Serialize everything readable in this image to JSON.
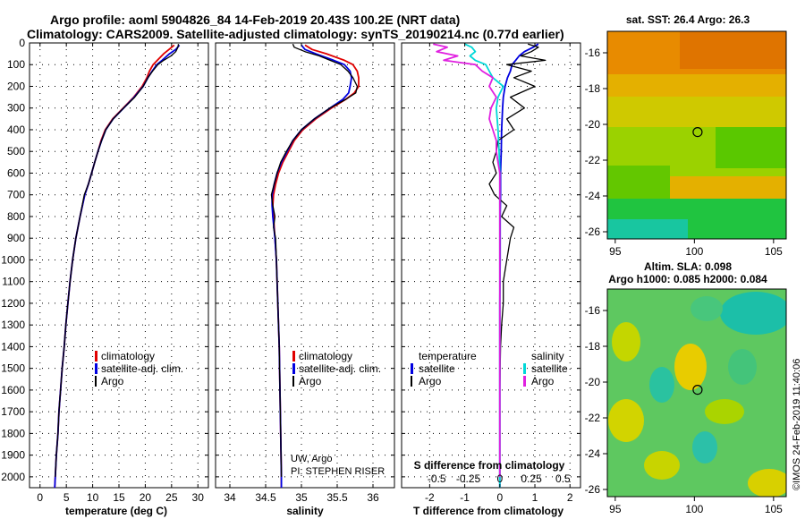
{
  "header": {
    "title_line1": "Argo profile: aoml 5904826_84 14-Feb-2019 20.43S 100.2E (NRT data)",
    "title_line2": "Climatology: CARS2009. Satellite-adjusted climatology: synTS_20190214.nc (0.77d earlier)"
  },
  "colors": {
    "climatology": "#e00000",
    "satellite": "#0000e0",
    "argo": "#000000",
    "argo_salinity_diff": "#e020e0",
    "satellite_salinity_diff": "#00d8d8"
  },
  "depth_ticks": [
    0,
    100,
    200,
    300,
    400,
    500,
    600,
    700,
    800,
    900,
    1000,
    1100,
    1200,
    1300,
    1400,
    1500,
    1600,
    1700,
    1800,
    1900,
    2000
  ],
  "chart_data": [
    {
      "type": "line",
      "id": "temperature",
      "xlabel": "temperature (deg C)",
      "xlim": [
        -2,
        32
      ],
      "ylim": [
        2050,
        0
      ],
      "xticks": [
        0,
        5,
        10,
        15,
        20,
        25,
        30
      ],
      "grid": true,
      "legend": {
        "placement": "lower-center",
        "entries": [
          "climatology",
          "satellite-adj. clim.",
          "Argo"
        ]
      },
      "series": [
        {
          "name": "climatology",
          "color": "#e00000",
          "y": [
            10,
            30,
            50,
            80,
            100,
            130,
            160,
            200,
            250,
            300,
            350,
            400,
            450,
            500,
            550,
            600,
            650,
            700,
            800,
            900,
            1000,
            1100,
            1200,
            1300,
            1400,
            1500,
            1600,
            1700,
            1800,
            1900,
            2000,
            2050
          ],
          "x": [
            25.5,
            24.5,
            23.5,
            22.3,
            21.5,
            20.8,
            20.3,
            19.4,
            17.8,
            15.8,
            13.8,
            12.4,
            11.6,
            11.0,
            10.4,
            9.8,
            9.2,
            8.5,
            7.6,
            6.8,
            6.2,
            5.7,
            5.3,
            4.9,
            4.6,
            4.2,
            3.9,
            3.6,
            3.4,
            3.1,
            2.9,
            2.8
          ]
        },
        {
          "name": "satellite-adj. clim.",
          "color": "#0000e0",
          "y": [
            10,
            30,
            50,
            80,
            100,
            130,
            160,
            200,
            250,
            300,
            350,
            400,
            450,
            500,
            550,
            600,
            650,
            700,
            800,
            900,
            1000,
            1100,
            1200,
            1300,
            1400,
            1500,
            1600,
            1700,
            1800,
            1900,
            2000,
            2050
          ],
          "x": [
            26.5,
            25.8,
            24.6,
            23.2,
            22.2,
            21.3,
            20.5,
            19.6,
            17.9,
            15.9,
            13.9,
            12.5,
            11.7,
            11.0,
            10.4,
            9.8,
            9.2,
            8.5,
            7.6,
            6.8,
            6.2,
            5.7,
            5.3,
            4.9,
            4.6,
            4.2,
            3.9,
            3.6,
            3.4,
            3.1,
            2.9,
            2.8
          ]
        },
        {
          "name": "Argo",
          "color": "#000000",
          "y": [
            5,
            20,
            40,
            60,
            80,
            100,
            130,
            160,
            200,
            250,
            300,
            350,
            400,
            450,
            500,
            550,
            600,
            650,
            700,
            800,
            900,
            1000,
            1100,
            1200,
            1300,
            1400,
            1500,
            1600,
            1700,
            1800,
            1900,
            2000
          ],
          "x": [
            26.3,
            26.2,
            25.8,
            24.9,
            23.5,
            22.4,
            21.4,
            20.5,
            19.6,
            18.0,
            15.9,
            13.9,
            12.5,
            11.7,
            11.0,
            10.4,
            9.8,
            9.2,
            8.4,
            7.6,
            6.8,
            6.2,
            5.7,
            5.3,
            4.9,
            4.6,
            4.2,
            3.9,
            3.6,
            3.4,
            3.1,
            2.9
          ]
        }
      ]
    },
    {
      "type": "line",
      "id": "salinity",
      "xlabel": "salinity",
      "xlim": [
        33.8,
        36.3
      ],
      "ylim": [
        2050,
        0
      ],
      "xticks": [
        34,
        34.5,
        35,
        35.5,
        36
      ],
      "grid": true,
      "legend": {
        "placement": "lower-center",
        "entries": [
          "climatology",
          "satellite-adj. clim.",
          "Argo"
        ]
      },
      "annotations": [
        "UW, Argo",
        "PI: STEPHEN RISER"
      ],
      "series": [
        {
          "name": "climatology",
          "color": "#e00000",
          "y": [
            10,
            30,
            50,
            80,
            100,
            130,
            160,
            200,
            230,
            260,
            300,
            350,
            400,
            450,
            500,
            550,
            600,
            650,
            700,
            750,
            800,
            900,
            1000,
            1200,
            1400,
            1600,
            1800,
            2000,
            2050
          ],
          "x": [
            35.05,
            35.15,
            35.35,
            35.6,
            35.72,
            35.78,
            35.8,
            35.8,
            35.74,
            35.62,
            35.42,
            35.2,
            35.02,
            34.9,
            34.82,
            34.74,
            34.68,
            34.64,
            34.61,
            34.6,
            34.61,
            34.63,
            34.65,
            34.67,
            34.69,
            34.7,
            34.71,
            34.72,
            34.72
          ]
        },
        {
          "name": "satellite-adj. clim.",
          "color": "#0000e0",
          "y": [
            10,
            30,
            50,
            80,
            100,
            130,
            160,
            200,
            230,
            260,
            300,
            350,
            400,
            450,
            500,
            550,
            600,
            650,
            700,
            750,
            800,
            900,
            1000,
            1200,
            1400,
            1600,
            1800,
            2000,
            2050
          ],
          "x": [
            35.0,
            35.05,
            35.2,
            35.45,
            35.6,
            35.68,
            35.7,
            35.68,
            35.66,
            35.58,
            35.4,
            35.18,
            35.0,
            34.88,
            34.8,
            34.72,
            34.66,
            34.62,
            34.59,
            34.59,
            34.6,
            34.63,
            34.65,
            34.67,
            34.69,
            34.7,
            34.71,
            34.72,
            34.72
          ]
        },
        {
          "name": "Argo",
          "color": "#000000",
          "y": [
            5,
            20,
            40,
            60,
            80,
            100,
            130,
            160,
            200,
            230,
            260,
            300,
            350,
            400,
            450,
            500,
            550,
            600,
            650,
            700,
            750,
            800,
            850,
            900,
            1000,
            1200,
            1400,
            1600,
            1800,
            2000
          ],
          "x": [
            34.88,
            34.9,
            35.05,
            35.25,
            35.4,
            35.55,
            35.65,
            35.72,
            35.78,
            35.76,
            35.62,
            35.4,
            35.18,
            35.0,
            34.88,
            34.79,
            34.71,
            34.66,
            34.62,
            34.58,
            34.6,
            34.63,
            34.61,
            34.64,
            34.65,
            34.67,
            34.69,
            34.7,
            34.71,
            34.72
          ]
        }
      ]
    },
    {
      "type": "line",
      "id": "differences",
      "xlabel": "T difference from climatology",
      "xlabel2": "S difference from climatology",
      "xlim": [
        -2.8,
        2.3
      ],
      "xticks": [
        -2,
        -1,
        0,
        1,
        2
      ],
      "xticks2_labels": [
        "-0.5",
        "-0.25",
        "0",
        "0.25",
        "0.5"
      ],
      "xticks2_values": [
        -1.8,
        -0.9,
        0,
        0.9,
        1.8
      ],
      "ylim": [
        2050,
        0
      ],
      "grid": true,
      "legend": {
        "placement": "lower",
        "temperature_heading": "temperature",
        "salinity_heading": "salinity",
        "entries": [
          "satellite",
          "Argo",
          "satellite",
          "Argo"
        ]
      },
      "series": [
        {
          "name": "temperature satellite",
          "color": "#0000e0",
          "y": [
            5,
            20,
            40,
            60,
            80,
            100,
            130,
            160,
            200,
            250,
            300,
            400,
            500,
            600,
            700,
            800,
            1000,
            1200,
            1500,
            1800,
            2050
          ],
          "x": [
            1.1,
            0.95,
            0.7,
            0.55,
            0.45,
            0.35,
            0.3,
            0.22,
            0.15,
            0.1,
            0.08,
            0.05,
            0.04,
            0.02,
            0.02,
            0.01,
            0.01,
            0.0,
            0.0,
            0.0,
            0.0
          ]
        },
        {
          "name": "temperature Argo",
          "color": "#000000",
          "y": [
            5,
            20,
            40,
            60,
            80,
            100,
            130,
            160,
            200,
            250,
            300,
            350,
            400,
            450,
            500,
            550,
            600,
            650,
            700,
            750,
            800,
            850,
            900,
            1000,
            1100,
            1200,
            1300,
            1400,
            1600,
            1800,
            2000
          ],
          "x": [
            0.8,
            1.1,
            0.9,
            0.6,
            1.3,
            0.2,
            0.9,
            0.4,
            1.0,
            0.3,
            0.7,
            0.2,
            0.4,
            -0.05,
            -0.1,
            -0.2,
            -0.1,
            -0.3,
            -0.15,
            0.2,
            0.05,
            0.4,
            0.3,
            0.2,
            0.1,
            0.1,
            0.05,
            0.02,
            0.0,
            0.0,
            0.0
          ]
        },
        {
          "name": "salinity satellite",
          "color": "#00d8d8",
          "y": [
            5,
            20,
            40,
            60,
            80,
            100,
            130,
            160,
            200,
            250,
            300,
            400,
            500,
            600,
            700,
            800,
            1000,
            1200,
            1500,
            1800,
            2050
          ],
          "x": [
            -1.0,
            -0.8,
            -0.7,
            -0.85,
            -0.7,
            -0.4,
            -0.3,
            -0.2,
            0.1,
            -0.05,
            -0.1,
            -0.05,
            -0.02,
            0.0,
            0.0,
            0.0,
            0.0,
            0.0,
            0.0,
            0.0,
            0.0
          ]
        },
        {
          "name": "salinity Argo",
          "color": "#e020e0",
          "y": [
            5,
            20,
            40,
            60,
            80,
            100,
            130,
            160,
            200,
            250,
            300,
            350,
            400,
            450,
            500,
            550,
            600,
            700,
            800,
            1000,
            1200,
            1500,
            1800,
            2000
          ],
          "x": [
            -1.9,
            -1.5,
            -1.8,
            -1.2,
            -1.6,
            -0.7,
            -0.5,
            -0.2,
            -0.3,
            -0.1,
            -0.25,
            -0.3,
            -0.2,
            -0.1,
            -0.1,
            -0.05,
            0.0,
            0.0,
            0.0,
            0.0,
            0.0,
            0.0,
            0.0,
            0.0
          ]
        }
      ]
    },
    {
      "type": "heatmap",
      "id": "sst_map",
      "title": "sat. SST: 26.4 Argo: 26.3",
      "xticks": [
        95,
        100,
        105
      ],
      "yticks": [
        -16,
        -18,
        -20,
        -22,
        -24,
        -26
      ],
      "xlim": [
        94.5,
        105.8
      ],
      "ylim": [
        -26.4,
        -14.8
      ],
      "argo_position": {
        "lon": 100.2,
        "lat": -20.43
      }
    },
    {
      "type": "heatmap",
      "id": "sla_map",
      "title_line1": "Altim. SLA: 0.098",
      "title_line2": "Argo h1000: 0.085 h2000: 0.084",
      "xticks": [
        95,
        100,
        105
      ],
      "yticks": [
        -16,
        -18,
        -20,
        -22,
        -24,
        -26
      ],
      "xlim": [
        94.5,
        105.8
      ],
      "ylim": [
        -26.4,
        -14.8
      ],
      "argo_position": {
        "lon": 100.2,
        "lat": -20.43
      }
    }
  ],
  "side_label": "©IMOS 24-Feb-2019 11:40:06"
}
